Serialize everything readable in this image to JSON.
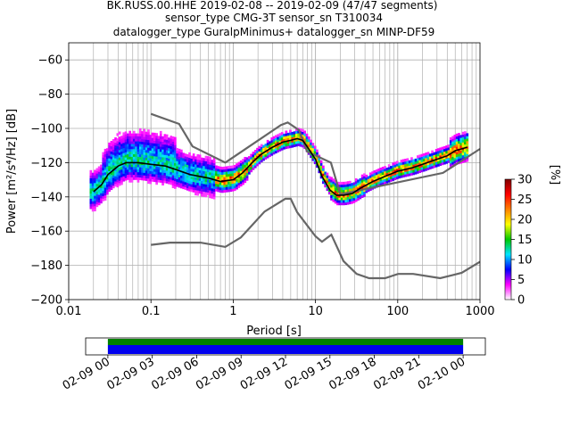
{
  "chart_data": [
    {
      "type": "heatmap",
      "title_lines": [
        "BK.RUSS.00.HHE   2019-02-08 -- 2019-02-09  (47/47 segments)",
        "sensor_type CMG-3T sensor_sn T310034",
        "datalogger_type GuralpMinimus+ datalogger_sn MINP-DF59"
      ],
      "xlabel": "Period [s]",
      "ylabel": "Power [m²/s⁴/Hz] [dB]",
      "xscale": "log",
      "xlim": [
        0.01,
        1000
      ],
      "ylim": [
        -200,
        -50
      ],
      "x_tick_labels": [
        {
          "v": 0.01,
          "t": "0.01"
        },
        {
          "v": 0.1,
          "t": "0.1"
        },
        {
          "v": 1,
          "t": "1"
        },
        {
          "v": 10,
          "t": "10"
        },
        {
          "v": 100,
          "t": "100"
        },
        {
          "v": 1000,
          "t": "1000"
        }
      ],
      "y_ticks": [
        -200,
        -180,
        -160,
        -140,
        -120,
        -100,
        -80,
        -60
      ],
      "grid": true,
      "colorbar": {
        "label": "[%]",
        "range": [
          0,
          30
        ],
        "ticks": [
          0,
          5,
          10,
          15,
          20,
          25,
          30
        ],
        "stops": [
          "#ffffff",
          "#ff00ff",
          "#0000ff",
          "#00e5ff",
          "#00c800",
          "#ffff00",
          "#ff8000",
          "#ff0000",
          "#800000"
        ]
      },
      "mode_curve": {
        "x": [
          0.02,
          0.025,
          0.03,
          0.04,
          0.05,
          0.07,
          0.1,
          0.15,
          0.2,
          0.3,
          0.5,
          0.7,
          1,
          1.3,
          1.7,
          2.2,
          3,
          4,
          5,
          6,
          7,
          8,
          10,
          12,
          15,
          18,
          22,
          28,
          35,
          50,
          70,
          100,
          150,
          200,
          300,
          400,
          500,
          700
        ],
        "y": [
          -137,
          -133,
          -127,
          -122,
          -120,
          -120,
          -121,
          -122,
          -124,
          -127,
          -129,
          -131,
          -130,
          -126,
          -120,
          -115,
          -111,
          -108,
          -107,
          -106,
          -107,
          -111,
          -118,
          -128,
          -136,
          -139,
          -139,
          -138,
          -135,
          -131,
          -128,
          -125,
          -123,
          -121,
          -118,
          -116,
          -113,
          -111
        ]
      },
      "nlnm": {
        "x": [
          0.1,
          0.17,
          0.4,
          0.8,
          1.24,
          2.4,
          4.3,
          5.0,
          6.0,
          10,
          12,
          15.6,
          21.9,
          31.6,
          45,
          70,
          101,
          154,
          328,
          600,
          1000
        ],
        "y": [
          -168,
          -166.7,
          -166.7,
          -169.2,
          -163.7,
          -148.6,
          -141.1,
          -141.1,
          -149,
          -163,
          -166.2,
          -162.1,
          -177.5,
          -185,
          -187.5,
          -187.5,
          -185,
          -185,
          -187.5,
          -184.4,
          -177.9
        ]
      },
      "nhnm": {
        "x": [
          0.1,
          0.22,
          0.32,
          0.8,
          3.8,
          4.6,
          6.3,
          7.9,
          15.4,
          20,
          354.8,
          1000
        ],
        "y": [
          -91.5,
          -97.4,
          -110.5,
          -120,
          -98,
          -96.5,
          -101,
          -113.5,
          -120,
          -138.5,
          -126,
          -112
        ]
      },
      "density_bins": "periods 0.02-0.6 s show wide scatter (-145 to -105 dB) around the mode curve; periods above 1 s form a narrow band; cluster 450-650 s extends up to -105 dB"
    },
    {
      "type": "timeline",
      "x_tick_labels": [
        "02-09 00",
        "02-09 03",
        "02-09 06",
        "02-09 09",
        "02-09 12",
        "02-09 15",
        "02-09 18",
        "02-09 21",
        "02-10 00"
      ],
      "x_range_hours": [
        -1.5,
        25.5
      ],
      "coverage_hours": [
        0,
        24
      ],
      "bands": [
        {
          "name": "top",
          "color": "#008000"
        },
        {
          "name": "bottom",
          "color": "#0000ee"
        }
      ]
    }
  ]
}
